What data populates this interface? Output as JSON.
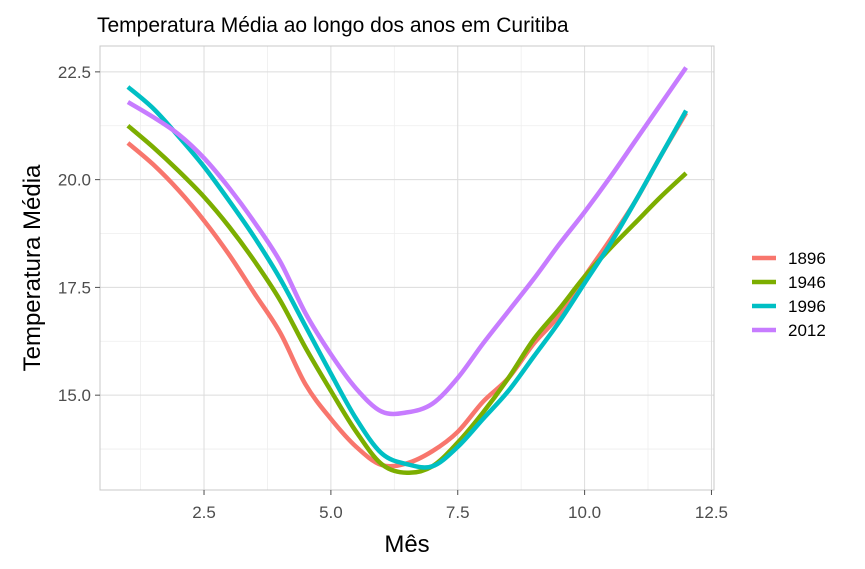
{
  "chart_data": {
    "type": "line",
    "title": "Temperatura Média ao longo dos anos em Curitiba",
    "xlabel": "Mês",
    "ylabel": "Temperatura Média",
    "xlim": [
      0.45,
      12.55
    ],
    "ylim": [
      12.8,
      23.1
    ],
    "xticks": [
      2.5,
      5.0,
      7.5,
      10.0,
      12.5
    ],
    "xtick_labels": [
      "2.5",
      "5.0",
      "7.5",
      "10.0",
      "12.5"
    ],
    "yticks": [
      15.0,
      17.5,
      20.0,
      22.5
    ],
    "ytick_labels": [
      "15.0",
      "17.5",
      "20.0",
      "22.5"
    ],
    "grid": true,
    "legend_position": "right",
    "series": [
      {
        "name": "1896",
        "color": "#F8766D",
        "points": [
          [
            1,
            20.85
          ],
          [
            1.5,
            20.35
          ],
          [
            2,
            19.75
          ],
          [
            2.5,
            19.05
          ],
          [
            3,
            18.25
          ],
          [
            3.5,
            17.35
          ],
          [
            4,
            16.45
          ],
          [
            4.5,
            15.25
          ],
          [
            5,
            14.45
          ],
          [
            5.5,
            13.8
          ],
          [
            6,
            13.38
          ],
          [
            6.5,
            13.42
          ],
          [
            7,
            13.7
          ],
          [
            7.5,
            14.15
          ],
          [
            8,
            14.85
          ],
          [
            8.5,
            15.4
          ],
          [
            9,
            16.2
          ],
          [
            9.5,
            16.85
          ],
          [
            10,
            17.75
          ],
          [
            10.5,
            18.6
          ],
          [
            11,
            19.5
          ],
          [
            11.5,
            20.55
          ],
          [
            12,
            21.55
          ]
        ]
      },
      {
        "name": "1946",
        "color": "#7CAE00",
        "points": [
          [
            1,
            21.25
          ],
          [
            1.5,
            20.75
          ],
          [
            2,
            20.2
          ],
          [
            2.5,
            19.6
          ],
          [
            3,
            18.9
          ],
          [
            3.5,
            18.1
          ],
          [
            4,
            17.2
          ],
          [
            4.5,
            16.1
          ],
          [
            5,
            15.1
          ],
          [
            5.5,
            14.15
          ],
          [
            6,
            13.4
          ],
          [
            6.5,
            13.2
          ],
          [
            7,
            13.35
          ],
          [
            7.5,
            13.9
          ],
          [
            8,
            14.6
          ],
          [
            8.5,
            15.4
          ],
          [
            9,
            16.3
          ],
          [
            9.5,
            17.0
          ],
          [
            10,
            17.75
          ],
          [
            10.5,
            18.4
          ],
          [
            11,
            19.0
          ],
          [
            11.5,
            19.6
          ],
          [
            12,
            20.15
          ]
        ]
      },
      {
        "name": "1996",
        "color": "#00BFC4",
        "points": [
          [
            1,
            22.15
          ],
          [
            1.5,
            21.65
          ],
          [
            2,
            21.0
          ],
          [
            2.5,
            20.3
          ],
          [
            3,
            19.5
          ],
          [
            3.5,
            18.65
          ],
          [
            4,
            17.7
          ],
          [
            4.5,
            16.6
          ],
          [
            5,
            15.5
          ],
          [
            5.5,
            14.45
          ],
          [
            6,
            13.65
          ],
          [
            6.5,
            13.4
          ],
          [
            7,
            13.35
          ],
          [
            7.5,
            13.8
          ],
          [
            8,
            14.45
          ],
          [
            8.5,
            15.1
          ],
          [
            9,
            15.9
          ],
          [
            9.5,
            16.7
          ],
          [
            10,
            17.6
          ],
          [
            10.5,
            18.5
          ],
          [
            11,
            19.5
          ],
          [
            11.5,
            20.55
          ],
          [
            12,
            21.6
          ]
        ]
      },
      {
        "name": "2012",
        "color": "#C77CFF",
        "points": [
          [
            1,
            21.8
          ],
          [
            1.5,
            21.45
          ],
          [
            2,
            21.05
          ],
          [
            2.5,
            20.5
          ],
          [
            3,
            19.8
          ],
          [
            3.5,
            19.0
          ],
          [
            4,
            18.1
          ],
          [
            4.5,
            16.9
          ],
          [
            5,
            15.95
          ],
          [
            5.5,
            15.15
          ],
          [
            6,
            14.62
          ],
          [
            6.5,
            14.6
          ],
          [
            7,
            14.8
          ],
          [
            7.5,
            15.4
          ],
          [
            8,
            16.2
          ],
          [
            8.5,
            16.95
          ],
          [
            9,
            17.7
          ],
          [
            9.5,
            18.5
          ],
          [
            10,
            19.25
          ],
          [
            10.5,
            20.05
          ],
          [
            11,
            20.9
          ],
          [
            11.5,
            21.75
          ],
          [
            12,
            22.6
          ]
        ]
      }
    ]
  }
}
